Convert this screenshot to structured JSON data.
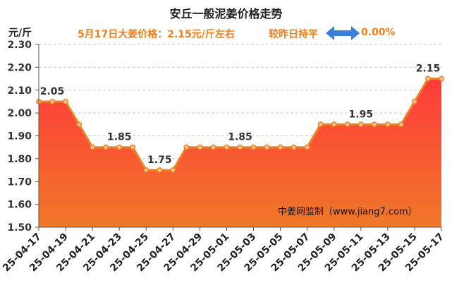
{
  "header": {
    "title": "安丘一般泥姜价格走势",
    "unit": "元/斤",
    "price_text": "5月17日大姜价格：2.15元/斤左右",
    "trend_text": "较昨日持平",
    "change_text": "0.00%",
    "trend_icon": "double-arrow-icon",
    "accent_color": "#f07f1c",
    "arrow_color": "#3d7fd4"
  },
  "watermark": "中姜网监制（www.jiang7.com）",
  "chart_data": {
    "type": "area",
    "title": "安丘一般泥姜价格走势",
    "ylabel": "元/斤",
    "xlabel": "",
    "ylim": [
      1.5,
      2.3
    ],
    "y_ticks": [
      "1.50",
      "1.60",
      "1.70",
      "1.80",
      "1.90",
      "2.00",
      "2.10",
      "2.20",
      "2.30"
    ],
    "grid": true,
    "x": [
      "25-04-17",
      "25-04-18",
      "25-04-19",
      "25-04-20",
      "25-04-21",
      "25-04-22",
      "25-04-23",
      "25-04-24",
      "25-04-25",
      "25-04-26",
      "25-04-27",
      "25-04-28",
      "25-04-29",
      "25-04-30",
      "25-05-01",
      "25-05-02",
      "25-05-03",
      "25-05-04",
      "25-05-05",
      "25-05-06",
      "25-05-07",
      "25-05-08",
      "25-05-09",
      "25-05-10",
      "25-05-11",
      "25-05-12",
      "25-05-13",
      "25-05-14",
      "25-05-15",
      "25-05-16",
      "25-05-17"
    ],
    "x_tick_labels": [
      "25-04-17",
      "25-04-19",
      "25-04-21",
      "25-04-23",
      "25-04-25",
      "25-04-27",
      "25-04-29",
      "25-05-01",
      "25-05-03",
      "25-05-05",
      "25-05-07",
      "25-05-09",
      "25-05-11",
      "25-05-13",
      "25-05-15",
      "25-05-17"
    ],
    "values": [
      2.05,
      2.05,
      2.05,
      1.95,
      1.85,
      1.85,
      1.85,
      1.85,
      1.75,
      1.75,
      1.75,
      1.85,
      1.85,
      1.85,
      1.85,
      1.85,
      1.85,
      1.85,
      1.85,
      1.85,
      1.85,
      1.95,
      1.95,
      1.95,
      1.95,
      1.95,
      1.95,
      1.95,
      2.05,
      2.15,
      2.15
    ],
    "data_labels": [
      {
        "x": "25-04-18",
        "text": "2.05"
      },
      {
        "x": "25-04-23",
        "text": "1.85"
      },
      {
        "x": "25-04-26",
        "text": "1.75"
      },
      {
        "x": "25-05-02",
        "text": "1.85"
      },
      {
        "x": "25-05-11",
        "text": "1.95"
      },
      {
        "x": "25-05-16",
        "text": "2.15"
      }
    ],
    "colors": {
      "line": "#e8832a",
      "marker_fill": "#f6c28f",
      "area_top": "#ff3a3a",
      "area_bottom": "#f07828"
    }
  }
}
